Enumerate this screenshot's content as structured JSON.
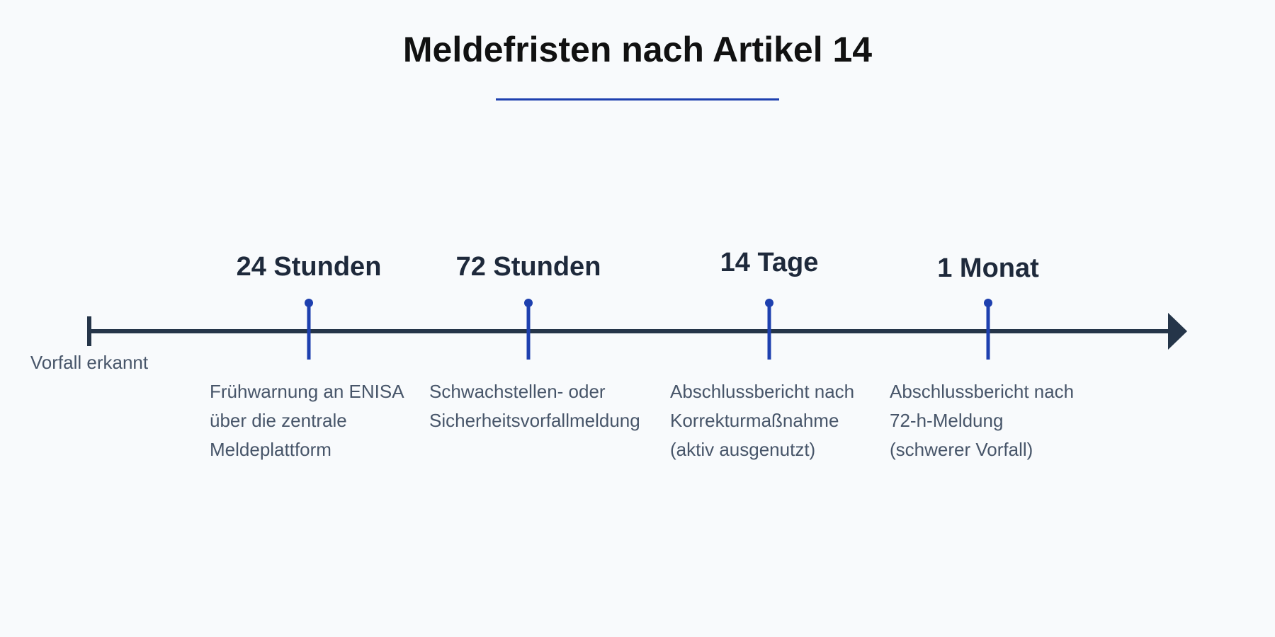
{
  "title": "Meldefristen nach Artikel 14",
  "timeline": {
    "start_label": "Vorfall erkannt",
    "colors": {
      "axis": "#253549",
      "marker": "#1e40af",
      "heading": "#1e293b",
      "text": "#475569"
    },
    "milestones": [
      {
        "label": "24 Stunden",
        "description": [
          "Frühwarnung an ENISA",
          "über die zentrale",
          "Meldeplattform"
        ]
      },
      {
        "label": "72 Stunden",
        "description": [
          "Schwachstellen- oder",
          "Sicherheitsvorfallmeldung"
        ]
      },
      {
        "label": "14 Tage",
        "description": [
          "Abschlussbericht nach",
          "Korrekturmaßnahme",
          "(aktiv ausgenutzt)"
        ]
      },
      {
        "label": "1 Monat",
        "description": [
          "Abschlussbericht nach",
          "72-h-Meldung",
          "(schwerer Vorfall)"
        ]
      }
    ]
  }
}
